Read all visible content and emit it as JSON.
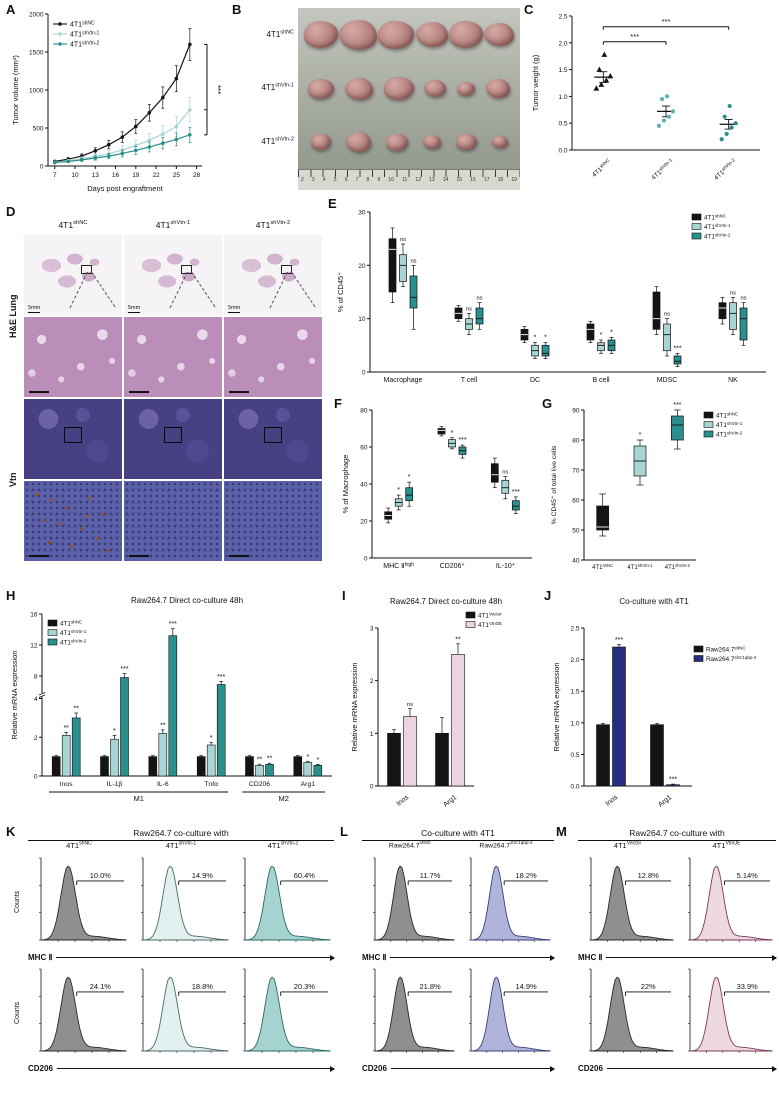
{
  "panels": {
    "A": {
      "letter": "A",
      "ylabel": "Tumor volume (mm³)",
      "xlabel": "Days post engraftment",
      "xlim": [
        6,
        28.8
      ],
      "ylim": [
        0,
        2000
      ],
      "xticks": [
        7,
        10,
        13,
        16,
        19,
        22,
        25,
        28
      ],
      "yticks": [
        0,
        500,
        1000,
        1500,
        2000
      ],
      "sig": "***",
      "series": [
        {
          "label": {
            "b": "4T1",
            "s": "shNC"
          },
          "color": "#141414",
          "x": [
            7,
            9,
            11,
            13,
            15,
            17,
            19,
            21,
            23,
            25,
            27
          ],
          "values": [
            60,
            90,
            130,
            200,
            280,
            380,
            520,
            700,
            900,
            1150,
            1600
          ],
          "err": [
            15,
            20,
            30,
            40,
            55,
            70,
            90,
            110,
            140,
            170,
            210
          ]
        },
        {
          "label": {
            "b": "4T1",
            "s": "shVtn-1"
          },
          "color": "#a9d4d4",
          "x": [
            7,
            9,
            11,
            13,
            15,
            17,
            19,
            21,
            23,
            25,
            27
          ],
          "values": [
            50,
            70,
            95,
            125,
            160,
            210,
            270,
            340,
            420,
            520,
            740
          ],
          "err": [
            12,
            18,
            25,
            35,
            45,
            60,
            75,
            90,
            110,
            130,
            160
          ]
        },
        {
          "label": {
            "b": "4T1",
            "s": "shVtn-2"
          },
          "color": "#2a8f8d",
          "x": [
            7,
            9,
            11,
            13,
            15,
            17,
            19,
            21,
            23,
            25,
            27
          ],
          "values": [
            45,
            60,
            80,
            105,
            130,
            165,
            205,
            250,
            300,
            350,
            410
          ],
          "err": [
            10,
            15,
            20,
            28,
            35,
            45,
            55,
            65,
            75,
            85,
            100
          ]
        }
      ]
    },
    "B": {
      "letter": "B",
      "rows": [
        {
          "label": {
            "b": "4T1",
            "s": "shNC"
          },
          "sizes": [
            34,
            38,
            36,
            32,
            34,
            30
          ]
        },
        {
          "label": {
            "b": "4T1",
            "s": "shVtn-1"
          },
          "sizes": [
            26,
            28,
            30,
            22,
            18,
            24
          ]
        },
        {
          "label": {
            "b": "4T1",
            "s": "shVtn-2"
          },
          "sizes": [
            20,
            25,
            22,
            18,
            21,
            16
          ]
        }
      ],
      "ruler_numbers": [
        "2",
        "3",
        "4",
        "5",
        "6",
        "7",
        "8",
        "9",
        "10",
        "11",
        "12",
        "13",
        "14",
        "15",
        "16",
        "17",
        "18",
        "19"
      ]
    },
    "C": {
      "letter": "C",
      "ylabel": "Tumor weight (g)",
      "ylim": [
        0,
        2.5
      ],
      "yticks": [
        "0.0",
        "0.5",
        "1.0",
        "1.5",
        "2.0",
        "2.5"
      ],
      "groups": [
        {
          "label": {
            "b": "4T1",
            "s": "shNC"
          },
          "marker": "triangle",
          "color": "#141414",
          "points": [
            1.15,
            1.22,
            1.3,
            1.38,
            1.5,
            1.78
          ],
          "mean": 1.36,
          "sem": 0.1
        },
        {
          "label": {
            "b": "4T1",
            "s": "shVtn-1"
          },
          "marker": "circle",
          "color": "#5fb3b1",
          "points": [
            0.45,
            0.55,
            0.62,
            0.72,
            0.95,
            1.0
          ],
          "mean": 0.72,
          "sem": 0.1
        },
        {
          "label": {
            "b": "4T1",
            "s": "shVtn-2"
          },
          "marker": "circle",
          "color": "#2a8f8d",
          "points": [
            0.2,
            0.3,
            0.42,
            0.5,
            0.62,
            0.82
          ],
          "mean": 0.48,
          "sem": 0.09
        }
      ],
      "sig": [
        {
          "a": 0,
          "b": 1,
          "y": 2.02,
          "text": "***"
        },
        {
          "a": 0,
          "b": 2,
          "y": 2.3,
          "text": "***"
        }
      ]
    },
    "D": {
      "letter": "D",
      "col_labels": [
        {
          "b": "4T1",
          "s": "shNC"
        },
        {
          "b": "4T1",
          "s": "shVtn-1"
        },
        {
          "b": "4T1",
          "s": "shVtn-2"
        }
      ],
      "row_groups": [
        "H&E Lung",
        "Vtn"
      ],
      "scale_label": "5mm"
    },
    "E": {
      "letter": "E",
      "ylabel": "% of CD45⁺",
      "ylim": [
        0,
        30
      ],
      "yticks": [
        0,
        10,
        20,
        30
      ],
      "categories": [
        "Macrophage",
        "T cell",
        "DC",
        "B cell",
        "MDSC",
        "NK"
      ],
      "series_labels": [
        {
          "b": "4T1",
          "s": "shNC"
        },
        {
          "b": "4T1",
          "s": "shVtn-1"
        },
        {
          "b": "4T1",
          "s": "shVtn-2"
        }
      ],
      "colors": [
        "#141414",
        "#a9d4d4",
        "#2a8f8d"
      ],
      "boxes": [
        [
          [
            13,
            15,
            23,
            25,
            27
          ],
          [
            16,
            17,
            20,
            22,
            24
          ],
          [
            8,
            12,
            14,
            18,
            20
          ]
        ],
        [
          [
            9.5,
            10,
            11,
            12,
            12.5
          ],
          [
            7,
            8,
            9,
            10,
            11
          ],
          [
            8,
            9,
            10,
            12,
            13
          ]
        ],
        [
          [
            5.5,
            6,
            7,
            8,
            8.5
          ],
          [
            2.5,
            3,
            4,
            5,
            5.5
          ],
          [
            2.5,
            3,
            3.5,
            5,
            5.5
          ]
        ],
        [
          [
            5.5,
            6,
            8,
            9,
            9.5
          ],
          [
            3.5,
            4,
            5,
            5.5,
            6
          ],
          [
            3.5,
            4,
            5,
            6,
            6.5
          ]
        ],
        [
          [
            7,
            8,
            10,
            15,
            16
          ],
          [
            3,
            4,
            7,
            9,
            10
          ],
          [
            1,
            1.5,
            2,
            3,
            3.5
          ]
        ],
        [
          [
            9,
            10,
            12,
            13,
            14
          ],
          [
            7,
            8,
            11,
            13,
            14
          ],
          [
            5,
            6,
            10,
            12,
            13
          ]
        ]
      ],
      "sig": [
        [
          "",
          "ns",
          "ns"
        ],
        [
          "",
          "ns",
          "ns"
        ],
        [
          "",
          "*",
          "*"
        ],
        [
          "",
          "*",
          "*"
        ],
        [
          "",
          "ns",
          "***"
        ],
        [
          "",
          "ns",
          "ns"
        ]
      ]
    },
    "F": {
      "letter": "F",
      "ylabel": "% of Macrophage",
      "ylim": [
        0,
        80
      ],
      "yticks": [
        0,
        20,
        40,
        60,
        80
      ],
      "categories": [
        {
          "b": "MHC Ⅱ",
          "s": "high"
        },
        {
          "b": "CD206",
          "s": "+"
        },
        {
          "b": "IL-10",
          "s": "+"
        }
      ],
      "colors": [
        "#141414",
        "#a9d4d4",
        "#2a8f8d"
      ],
      "boxes": [
        [
          [
            19,
            21,
            23,
            25,
            27
          ],
          [
            26,
            28,
            30,
            32,
            34
          ],
          [
            28,
            31,
            34,
            38,
            41
          ]
        ],
        [
          [
            66,
            67,
            69,
            70,
            71
          ],
          [
            59,
            60,
            62,
            64,
            65
          ],
          [
            54,
            56,
            58,
            60,
            61
          ]
        ],
        [
          [
            38,
            41,
            45,
            51,
            54
          ],
          [
            32,
            35,
            38,
            42,
            44
          ],
          [
            24,
            26,
            28,
            31,
            33
          ]
        ]
      ],
      "sig": [
        [
          "",
          "*",
          "*"
        ],
        [
          "",
          "*",
          "***"
        ],
        [
          "",
          "ns",
          "***"
        ]
      ]
    },
    "G": {
      "letter": "G",
      "ylabel": "% CD45⁺ of total live cells",
      "ylim": [
        40,
        90
      ],
      "yticks": [
        40,
        50,
        60,
        70,
        80,
        90
      ],
      "categories": [
        {
          "b": "4T1",
          "s": "shNC"
        },
        {
          "b": "4T1",
          "s": "shVtn-1"
        },
        {
          "b": "4T1",
          "s": "shVtn-2"
        }
      ],
      "series_labels": [
        {
          "b": "4T1",
          "s": "shNC"
        },
        {
          "b": "4T1",
          "s": "shVtn-1"
        },
        {
          "b": "4T1",
          "s": "shVtn-2"
        }
      ],
      "colors": [
        "#141414",
        "#a9d4d4",
        "#2a8f8d"
      ],
      "boxes": [
        [
          [
            48,
            50,
            51,
            58,
            62
          ]
        ],
        [
          [
            65,
            68,
            73,
            78,
            80
          ]
        ],
        [
          [
            77,
            80,
            85,
            88,
            90
          ]
        ]
      ],
      "sig": [
        [
          ""
        ],
        [
          "*"
        ],
        [
          "***"
        ]
      ]
    },
    "H": {
      "letter": "H",
      "title": "Raw264.7 Direct co-culture 48h",
      "ylabel": "Relative mRNA expression",
      "axis_break": {
        "lower": [
          0,
          4
        ],
        "upper": [
          6,
          16
        ],
        "lower_ticks": [
          0,
          2,
          4
        ],
        "upper_ticks": [
          8,
          12,
          16
        ],
        "lower_frac": 0.5
      },
      "categories": [
        "Inos",
        "IL-1β",
        "IL-6",
        "Tnfα",
        "CD206",
        "Arg1"
      ],
      "series_labels": [
        {
          "b": "4T1",
          "s": "shNC"
        },
        {
          "b": "4T1",
          "s": "shVtn-1"
        },
        {
          "b": "4T1",
          "s": "shVtn-2"
        }
      ],
      "colors": [
        "#141414",
        "#a9d4d4",
        "#2a8f8d"
      ],
      "values": [
        [
          1,
          2.1,
          3.0
        ],
        [
          1,
          1.9,
          7.8
        ],
        [
          1,
          2.2,
          13.2
        ],
        [
          1,
          1.6,
          6.9
        ],
        [
          1,
          0.55,
          0.6
        ],
        [
          1,
          0.7,
          0.55
        ]
      ],
      "errors": [
        [
          0.05,
          0.15,
          0.25
        ],
        [
          0.05,
          0.2,
          0.5
        ],
        [
          0.05,
          0.18,
          0.9
        ],
        [
          0.05,
          0.12,
          0.4
        ],
        [
          0.05,
          0.06,
          0.06
        ],
        [
          0.05,
          0.06,
          0.05
        ]
      ],
      "sig": [
        [
          "",
          "**",
          "**"
        ],
        [
          "",
          "*",
          "***"
        ],
        [
          "",
          "**",
          "***"
        ],
        [
          "",
          "*",
          "***"
        ],
        [
          "",
          "**",
          "**"
        ],
        [
          "",
          "*",
          "*"
        ]
      ],
      "group_brackets": [
        {
          "label": "M1",
          "from": 0,
          "to": 3
        },
        {
          "label": "M2",
          "from": 4,
          "to": 5
        }
      ]
    },
    "I": {
      "letter": "I",
      "title": "Raw264.7 Direct co-culture 48h",
      "ylabel": "Relative mRNA expression",
      "ylim": [
        0,
        3
      ],
      "yticks": [
        0,
        1,
        2,
        3
      ],
      "categories": [
        "Inos",
        "Arg1"
      ],
      "series_labels": [
        {
          "b": "4T1",
          "s": "Vector"
        },
        {
          "b": "4T1",
          "s": "VtnOE"
        }
      ],
      "colors": [
        "#141414",
        "#ecd3e0"
      ],
      "values": [
        [
          1.0,
          1.32
        ],
        [
          1.0,
          2.5
        ]
      ],
      "errors": [
        [
          0.07,
          0.15
        ],
        [
          0.3,
          0.2
        ]
      ],
      "sig": [
        [
          "",
          "ns"
        ],
        [
          "",
          "**"
        ]
      ]
    },
    "J": {
      "letter": "J",
      "title": "Co-culture with 4T1",
      "ylabel": "Relative mRNA expression",
      "ylim": [
        0,
        2.5
      ],
      "yticks": [
        "0.0",
        "0.5",
        "1.0",
        "1.5",
        "2.0",
        "2.5"
      ],
      "categories": [
        "Inos",
        "Arg1"
      ],
      "series_labels": [
        {
          "b": "Raw264.7",
          "s": "shNC"
        },
        {
          "b": "Raw264.7",
          "s": "shC1qbp-2"
        }
      ],
      "colors": [
        "#141414",
        "#252f7d"
      ],
      "values": [
        [
          0.97,
          2.2
        ],
        [
          0.97,
          0.02
        ]
      ],
      "errors": [
        [
          0.02,
          0.04
        ],
        [
          0.02,
          0.01
        ]
      ],
      "sig": [
        [
          "",
          "***"
        ],
        [
          "",
          "***"
        ]
      ]
    },
    "K": {
      "letter": "K",
      "title": "Raw264.7 co-culture with",
      "counts_label": "Counts",
      "columns": [
        {
          "label": {
            "b": "4T1",
            "s": "shNC"
          },
          "fill": "#8f8f8f",
          "stroke": "#2a2a2a"
        },
        {
          "label": {
            "b": "4T1",
            "s": "shVtn-1"
          },
          "fill": "#e2f0ef",
          "stroke": "#4a6a6a"
        },
        {
          "label": {
            "b": "4T1",
            "s": "shVtn-2"
          },
          "fill": "#a5d3d0",
          "stroke": "#2a6a68"
        }
      ],
      "rows": [
        {
          "marker": "MHC Ⅱ",
          "percents": [
            "10.0%",
            "14.9%",
            "60.4%"
          ]
        },
        {
          "marker": "CD206",
          "percents": [
            "24.1%",
            "18.8%",
            "20.3%"
          ]
        }
      ]
    },
    "L": {
      "letter": "L",
      "title": "Co-culture with 4T1",
      "counts_label": "",
      "columns": [
        {
          "label": {
            "b": "Raw264.7",
            "s": "shNC"
          },
          "fill": "#8f8f8f",
          "stroke": "#2a2a2a"
        },
        {
          "label": {
            "b": "Raw264.7",
            "s": "shC1qbp-2"
          },
          "fill": "#b0b4da",
          "stroke": "#3a3f7a"
        }
      ],
      "rows": [
        {
          "marker": "MHC Ⅱ",
          "percents": [
            "11.7%",
            "18.2%"
          ]
        },
        {
          "marker": "CD206",
          "percents": [
            "21.8%",
            "14.9%"
          ]
        }
      ]
    },
    "M": {
      "letter": "M",
      "title": "Raw264.7 co-culture with",
      "counts_label": "",
      "columns": [
        {
          "label": {
            "b": "4T1",
            "s": "Vector"
          },
          "fill": "#8f8f8f",
          "stroke": "#2a2a2a"
        },
        {
          "label": {
            "b": "4T1",
            "s": "VtnOE"
          },
          "fill": "#eed8e2",
          "stroke": "#7a3a5a"
        }
      ],
      "rows": [
        {
          "marker": "MHC Ⅱ",
          "percents": [
            "12.8%",
            "5.14%"
          ]
        },
        {
          "marker": "CD206",
          "percents": [
            "22%",
            "33.9%"
          ]
        }
      ]
    }
  }
}
